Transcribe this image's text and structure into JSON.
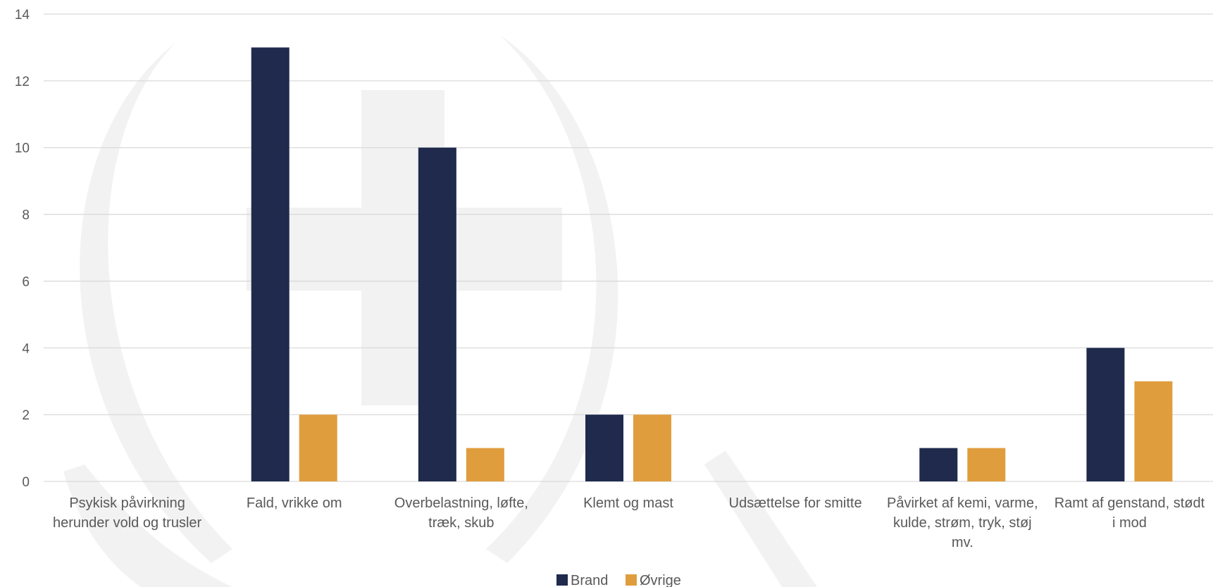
{
  "chart_data": {
    "type": "bar",
    "categories": [
      [
        "Psykisk påvirkning",
        "herunder vold og trusler"
      ],
      [
        "Fald, vrikke om"
      ],
      [
        "Overbelastning, løfte,",
        "træk, skub"
      ],
      [
        "Klemt og mast"
      ],
      [
        "Udsættelse for smitte"
      ],
      [
        "Påvirket af kemi, varme,",
        "kulde, strøm, tryk, støj",
        "mv."
      ],
      [
        "Ramt af genstand, stødt",
        "i mod"
      ]
    ],
    "series": [
      {
        "name": "Brand",
        "color": "#1F2A4D",
        "values": [
          0,
          13,
          10,
          2,
          0,
          1,
          4
        ]
      },
      {
        "name": "Øvrige",
        "color": "#E09D3E",
        "values": [
          0,
          2,
          1,
          2,
          0,
          1,
          3
        ]
      }
    ],
    "yticks": [
      "0",
      "2",
      "4",
      "6",
      "8",
      "10",
      "12",
      "14"
    ],
    "ylim": [
      0,
      14
    ],
    "grid": true,
    "legend": "bottom-center"
  }
}
